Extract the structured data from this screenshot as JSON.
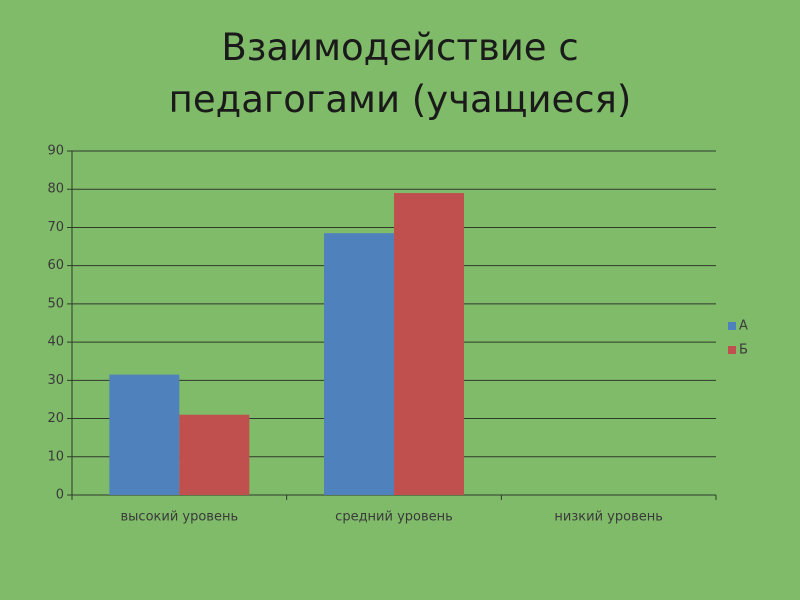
{
  "chart_data": {
    "type": "bar",
    "title": "Взаимодействие с педагогами (учащиеся)",
    "categories": [
      "высокий уровень",
      "средний уровень",
      "низкий уровень"
    ],
    "series": [
      {
        "name": "А",
        "color": "#4f81bd",
        "values": [
          31.5,
          68.5,
          0
        ]
      },
      {
        "name": "Б",
        "color": "#c0504d",
        "values": [
          21,
          79,
          0
        ]
      }
    ],
    "ylim": [
      0,
      90
    ],
    "yticks": [
      0,
      10,
      20,
      30,
      40,
      50,
      60,
      70,
      80,
      90
    ],
    "grid": true,
    "legend": "right"
  }
}
